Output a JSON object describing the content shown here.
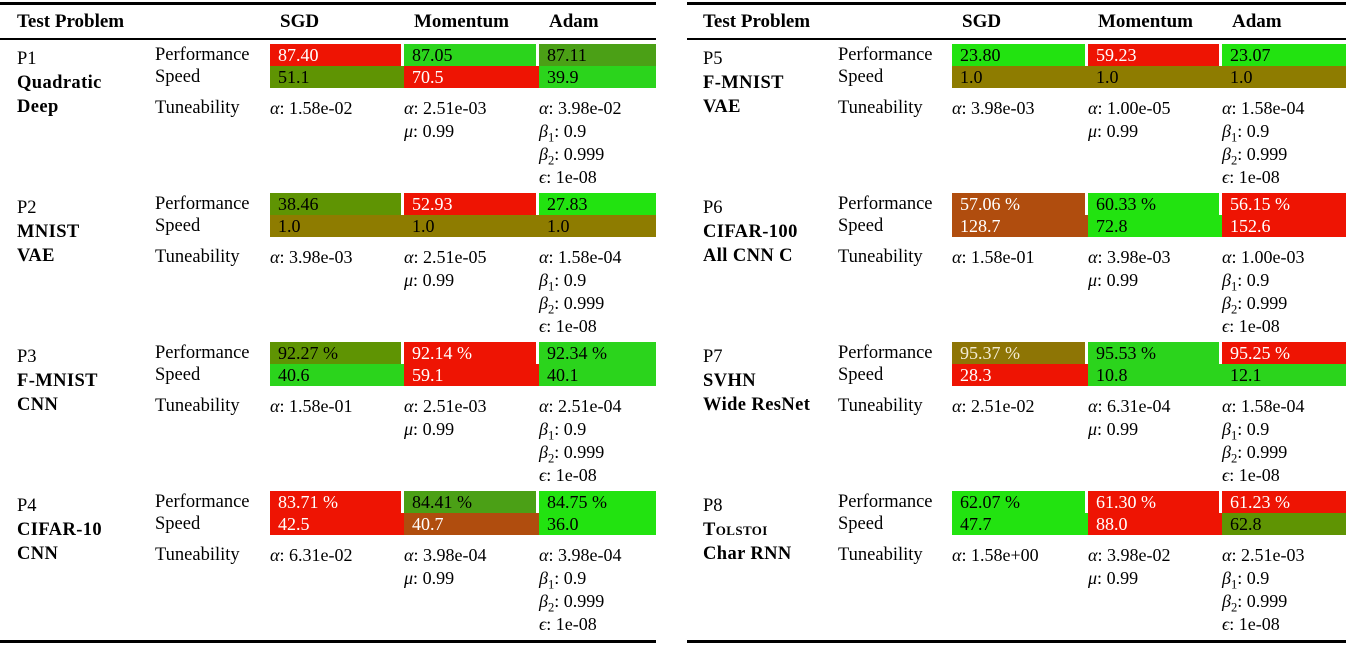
{
  "palette": {
    "red": "#ee1403",
    "brick": "#b04d0e",
    "gold": "#8e7505",
    "dark_yellow": "#8e7c00",
    "olive_green": "#5f9403",
    "mid_green": "#4ba016",
    "green": "#2bd41c",
    "bright_green": "#22e310",
    "dark": "#000000",
    "light": "#ffffff",
    "cream": "#f2ecd4"
  },
  "tables": [
    {
      "header": {
        "problem": "Test Problem",
        "optimizers": [
          "SGD",
          "Momentum",
          "Adam"
        ]
      },
      "blocks": [
        {
          "id": "P1",
          "name_lines": [
            {
              "text": "Quadratic"
            },
            {
              "text": "Deep"
            }
          ],
          "metric_labels": [
            "Performance",
            "Speed",
            "Tuneability"
          ],
          "cells": {
            "performance": [
              {
                "value": "87.40",
                "bg": "red",
                "fg": "light"
              },
              {
                "value": "87.05",
                "bg": "green",
                "fg": "dark"
              },
              {
                "value": "87.11",
                "bg": "mid_green",
                "fg": "dark"
              }
            ],
            "speed": [
              {
                "value": "51.1",
                "bg": "olive_green",
                "fg": "dark"
              },
              {
                "value": "70.5",
                "bg": "red",
                "fg": "light"
              },
              {
                "value": "39.9",
                "bg": "green",
                "fg": "dark"
              }
            ],
            "tuneability": [
              [
                {
                  "sym": "α",
                  "value": "1.58e-02"
                }
              ],
              [
                {
                  "sym": "α",
                  "value": "2.51e-03"
                },
                {
                  "sym": "μ",
                  "value": "0.99"
                }
              ],
              [
                {
                  "sym": "α",
                  "value": "3.98e-02"
                },
                {
                  "sym": "β",
                  "sub": "1",
                  "value": "0.9"
                },
                {
                  "sym": "β",
                  "sub": "2",
                  "value": "0.999"
                },
                {
                  "sym": "ϵ",
                  "value": "1e-08"
                }
              ]
            ]
          }
        },
        {
          "id": "P2",
          "name_lines": [
            {
              "text": "MNIST"
            },
            {
              "text": "VAE"
            }
          ],
          "metric_labels": [
            "Performance",
            "Speed",
            "Tuneability"
          ],
          "cells": {
            "performance": [
              {
                "value": "38.46",
                "bg": "olive_green",
                "fg": "dark"
              },
              {
                "value": "52.93",
                "bg": "red",
                "fg": "light"
              },
              {
                "value": "27.83",
                "bg": "bright_green",
                "fg": "dark"
              }
            ],
            "speed": [
              {
                "value": "1.0",
                "bg": "dark_yellow",
                "fg": "dark"
              },
              {
                "value": "1.0",
                "bg": "dark_yellow",
                "fg": "dark"
              },
              {
                "value": "1.0",
                "bg": "dark_yellow",
                "fg": "dark"
              }
            ],
            "tuneability": [
              [
                {
                  "sym": "α",
                  "value": "3.98e-03"
                }
              ],
              [
                {
                  "sym": "α",
                  "value": "2.51e-05"
                },
                {
                  "sym": "μ",
                  "value": "0.99"
                }
              ],
              [
                {
                  "sym": "α",
                  "value": "1.58e-04"
                },
                {
                  "sym": "β",
                  "sub": "1",
                  "value": "0.9"
                },
                {
                  "sym": "β",
                  "sub": "2",
                  "value": "0.999"
                },
                {
                  "sym": "ϵ",
                  "value": "1e-08"
                }
              ]
            ]
          }
        },
        {
          "id": "P3",
          "name_lines": [
            {
              "text": "F-MNIST"
            },
            {
              "text": "CNN"
            }
          ],
          "metric_labels": [
            "Performance",
            "Speed",
            "Tuneability"
          ],
          "cells": {
            "performance": [
              {
                "value": "92.27 %",
                "bg": "olive_green",
                "fg": "dark"
              },
              {
                "value": "92.14 %",
                "bg": "red",
                "fg": "light"
              },
              {
                "value": "92.34 %",
                "bg": "green",
                "fg": "dark"
              }
            ],
            "speed": [
              {
                "value": "40.6",
                "bg": "green",
                "fg": "dark"
              },
              {
                "value": "59.1",
                "bg": "red",
                "fg": "light"
              },
              {
                "value": "40.1",
                "bg": "green",
                "fg": "dark"
              }
            ],
            "tuneability": [
              [
                {
                  "sym": "α",
                  "value": "1.58e-01"
                }
              ],
              [
                {
                  "sym": "α",
                  "value": "2.51e-03"
                },
                {
                  "sym": "μ",
                  "value": "0.99"
                }
              ],
              [
                {
                  "sym": "α",
                  "value": "2.51e-04"
                },
                {
                  "sym": "β",
                  "sub": "1",
                  "value": "0.9"
                },
                {
                  "sym": "β",
                  "sub": "2",
                  "value": "0.999"
                },
                {
                  "sym": "ϵ",
                  "value": "1e-08"
                }
              ]
            ]
          }
        },
        {
          "id": "P4",
          "name_lines": [
            {
              "text": "CIFAR-10"
            },
            {
              "text": "CNN"
            }
          ],
          "metric_labels": [
            "Performance",
            "Speed",
            "Tuneability"
          ],
          "cells": {
            "performance": [
              {
                "value": "83.71 %",
                "bg": "red",
                "fg": "light"
              },
              {
                "value": "84.41 %",
                "bg": "mid_green",
                "fg": "dark"
              },
              {
                "value": "84.75 %",
                "bg": "bright_green",
                "fg": "dark"
              }
            ],
            "speed": [
              {
                "value": "42.5",
                "bg": "red",
                "fg": "light"
              },
              {
                "value": "40.7",
                "bg": "brick",
                "fg": "light"
              },
              {
                "value": "36.0",
                "bg": "bright_green",
                "fg": "dark"
              }
            ],
            "tuneability": [
              [
                {
                  "sym": "α",
                  "value": "6.31e-02"
                }
              ],
              [
                {
                  "sym": "α",
                  "value": "3.98e-04"
                },
                {
                  "sym": "μ",
                  "value": "0.99"
                }
              ],
              [
                {
                  "sym": "α",
                  "value": "3.98e-04"
                },
                {
                  "sym": "β",
                  "sub": "1",
                  "value": "0.9"
                },
                {
                  "sym": "β",
                  "sub": "2",
                  "value": "0.999"
                },
                {
                  "sym": "ϵ",
                  "value": "1e-08"
                }
              ]
            ]
          }
        }
      ]
    },
    {
      "header": {
        "problem": "Test Problem",
        "optimizers": [
          "SGD",
          "Momentum",
          "Adam"
        ]
      },
      "blocks": [
        {
          "id": "P5",
          "name_lines": [
            {
              "text": "F-MNIST"
            },
            {
              "text": "VAE"
            }
          ],
          "metric_labels": [
            "Performance",
            "Speed",
            "Tuneability"
          ],
          "cells": {
            "performance": [
              {
                "value": "23.80",
                "bg": "bright_green",
                "fg": "dark"
              },
              {
                "value": "59.23",
                "bg": "red",
                "fg": "light"
              },
              {
                "value": "23.07",
                "bg": "bright_green",
                "fg": "dark"
              }
            ],
            "speed": [
              {
                "value": "1.0",
                "bg": "dark_yellow",
                "fg": "dark"
              },
              {
                "value": "1.0",
                "bg": "dark_yellow",
                "fg": "dark"
              },
              {
                "value": "1.0",
                "bg": "dark_yellow",
                "fg": "dark"
              }
            ],
            "tuneability": [
              [
                {
                  "sym": "α",
                  "value": "3.98e-03"
                }
              ],
              [
                {
                  "sym": "α",
                  "value": "1.00e-05"
                },
                {
                  "sym": "μ",
                  "value": "0.99"
                }
              ],
              [
                {
                  "sym": "α",
                  "value": "1.58e-04"
                },
                {
                  "sym": "β",
                  "sub": "1",
                  "value": "0.9"
                },
                {
                  "sym": "β",
                  "sub": "2",
                  "value": "0.999"
                },
                {
                  "sym": "ϵ",
                  "value": "1e-08"
                }
              ]
            ]
          }
        },
        {
          "id": "P6",
          "name_lines": [
            {
              "text": "CIFAR-100"
            },
            {
              "text": "All CNN C"
            }
          ],
          "metric_labels": [
            "Performance",
            "Speed",
            "Tuneability"
          ],
          "cells": {
            "performance": [
              {
                "value": "57.06 %",
                "bg": "brick",
                "fg": "light"
              },
              {
                "value": "60.33 %",
                "bg": "bright_green",
                "fg": "dark"
              },
              {
                "value": "56.15 %",
                "bg": "red",
                "fg": "light"
              }
            ],
            "speed": [
              {
                "value": "128.7",
                "bg": "brick",
                "fg": "light"
              },
              {
                "value": "72.8",
                "bg": "bright_green",
                "fg": "dark"
              },
              {
                "value": "152.6",
                "bg": "red",
                "fg": "light"
              }
            ],
            "tuneability": [
              [
                {
                  "sym": "α",
                  "value": "1.58e-01"
                }
              ],
              [
                {
                  "sym": "α",
                  "value": "3.98e-03"
                },
                {
                  "sym": "μ",
                  "value": "0.99"
                }
              ],
              [
                {
                  "sym": "α",
                  "value": "1.00e-03"
                },
                {
                  "sym": "β",
                  "sub": "1",
                  "value": "0.9"
                },
                {
                  "sym": "β",
                  "sub": "2",
                  "value": "0.999"
                },
                {
                  "sym": "ϵ",
                  "value": "1e-08"
                }
              ]
            ]
          }
        },
        {
          "id": "P7",
          "name_lines": [
            {
              "text": "SVHN"
            },
            {
              "text": "Wide ResNet"
            }
          ],
          "metric_labels": [
            "Performance",
            "Speed",
            "Tuneability"
          ],
          "cells": {
            "performance": [
              {
                "value": "95.37 %",
                "bg": "gold",
                "fg": "cream"
              },
              {
                "value": "95.53 %",
                "bg": "green",
                "fg": "dark"
              },
              {
                "value": "95.25 %",
                "bg": "red",
                "fg": "light"
              }
            ],
            "speed": [
              {
                "value": "28.3",
                "bg": "red",
                "fg": "light"
              },
              {
                "value": "10.8",
                "bg": "green",
                "fg": "dark"
              },
              {
                "value": "12.1",
                "bg": "green",
                "fg": "dark"
              }
            ],
            "tuneability": [
              [
                {
                  "sym": "α",
                  "value": "2.51e-02"
                }
              ],
              [
                {
                  "sym": "α",
                  "value": "6.31e-04"
                },
                {
                  "sym": "μ",
                  "value": "0.99"
                }
              ],
              [
                {
                  "sym": "α",
                  "value": "1.58e-04"
                },
                {
                  "sym": "β",
                  "sub": "1",
                  "value": "0.9"
                },
                {
                  "sym": "β",
                  "sub": "2",
                  "value": "0.999"
                },
                {
                  "sym": "ϵ",
                  "value": "1e-08"
                }
              ]
            ]
          }
        },
        {
          "id": "P8",
          "name_lines": [
            {
              "text": "Tolstoi",
              "smallcaps": true
            },
            {
              "text": "Char RNN"
            }
          ],
          "metric_labels": [
            "Performance",
            "Speed",
            "Tuneability"
          ],
          "cells": {
            "performance": [
              {
                "value": "62.07 %",
                "bg": "bright_green",
                "fg": "dark"
              },
              {
                "value": "61.30 %",
                "bg": "red",
                "fg": "light"
              },
              {
                "value": "61.23 %",
                "bg": "red",
                "fg": "light"
              }
            ],
            "speed": [
              {
                "value": "47.7",
                "bg": "bright_green",
                "fg": "dark"
              },
              {
                "value": "88.0",
                "bg": "red",
                "fg": "light"
              },
              {
                "value": "62.8",
                "bg": "olive_green",
                "fg": "dark"
              }
            ],
            "tuneability": [
              [
                {
                  "sym": "α",
                  "value": "1.58e+00"
                }
              ],
              [
                {
                  "sym": "α",
                  "value": "3.98e-02"
                },
                {
                  "sym": "μ",
                  "value": "0.99"
                }
              ],
              [
                {
                  "sym": "α",
                  "value": "2.51e-03"
                },
                {
                  "sym": "β",
                  "sub": "1",
                  "value": "0.9"
                },
                {
                  "sym": "β",
                  "sub": "2",
                  "value": "0.999"
                },
                {
                  "sym": "ϵ",
                  "value": "1e-08"
                }
              ]
            ]
          }
        }
      ]
    }
  ]
}
